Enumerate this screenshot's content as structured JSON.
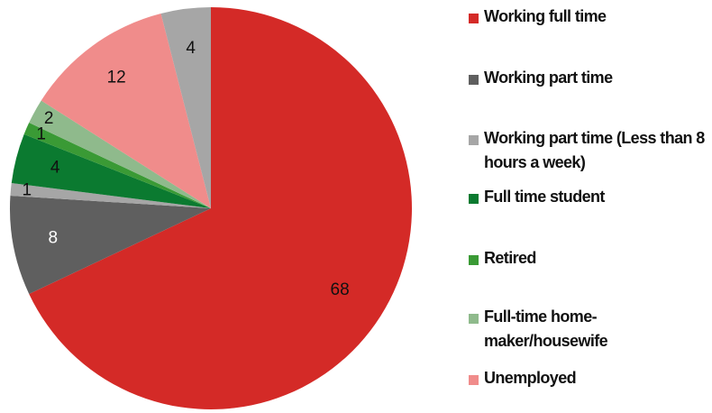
{
  "chart_data": {
    "type": "pie",
    "categories": [
      "Working full time",
      "Working part time",
      "Working part time (Less than 8 hours a week)",
      "Full time student",
      "Retired",
      "Full-time home-maker/housewife",
      "Unemployed",
      null
    ],
    "values": [
      68,
      8,
      1,
      4,
      1,
      2,
      12,
      4
    ],
    "colors": [
      "#d42a27",
      "#5f5f5f",
      "#a6a6a6",
      "#0b7a30",
      "#3a9a35",
      "#8fba8c",
      "#f08c8b",
      "#a6a6a6"
    ],
    "legend": "right"
  }
}
